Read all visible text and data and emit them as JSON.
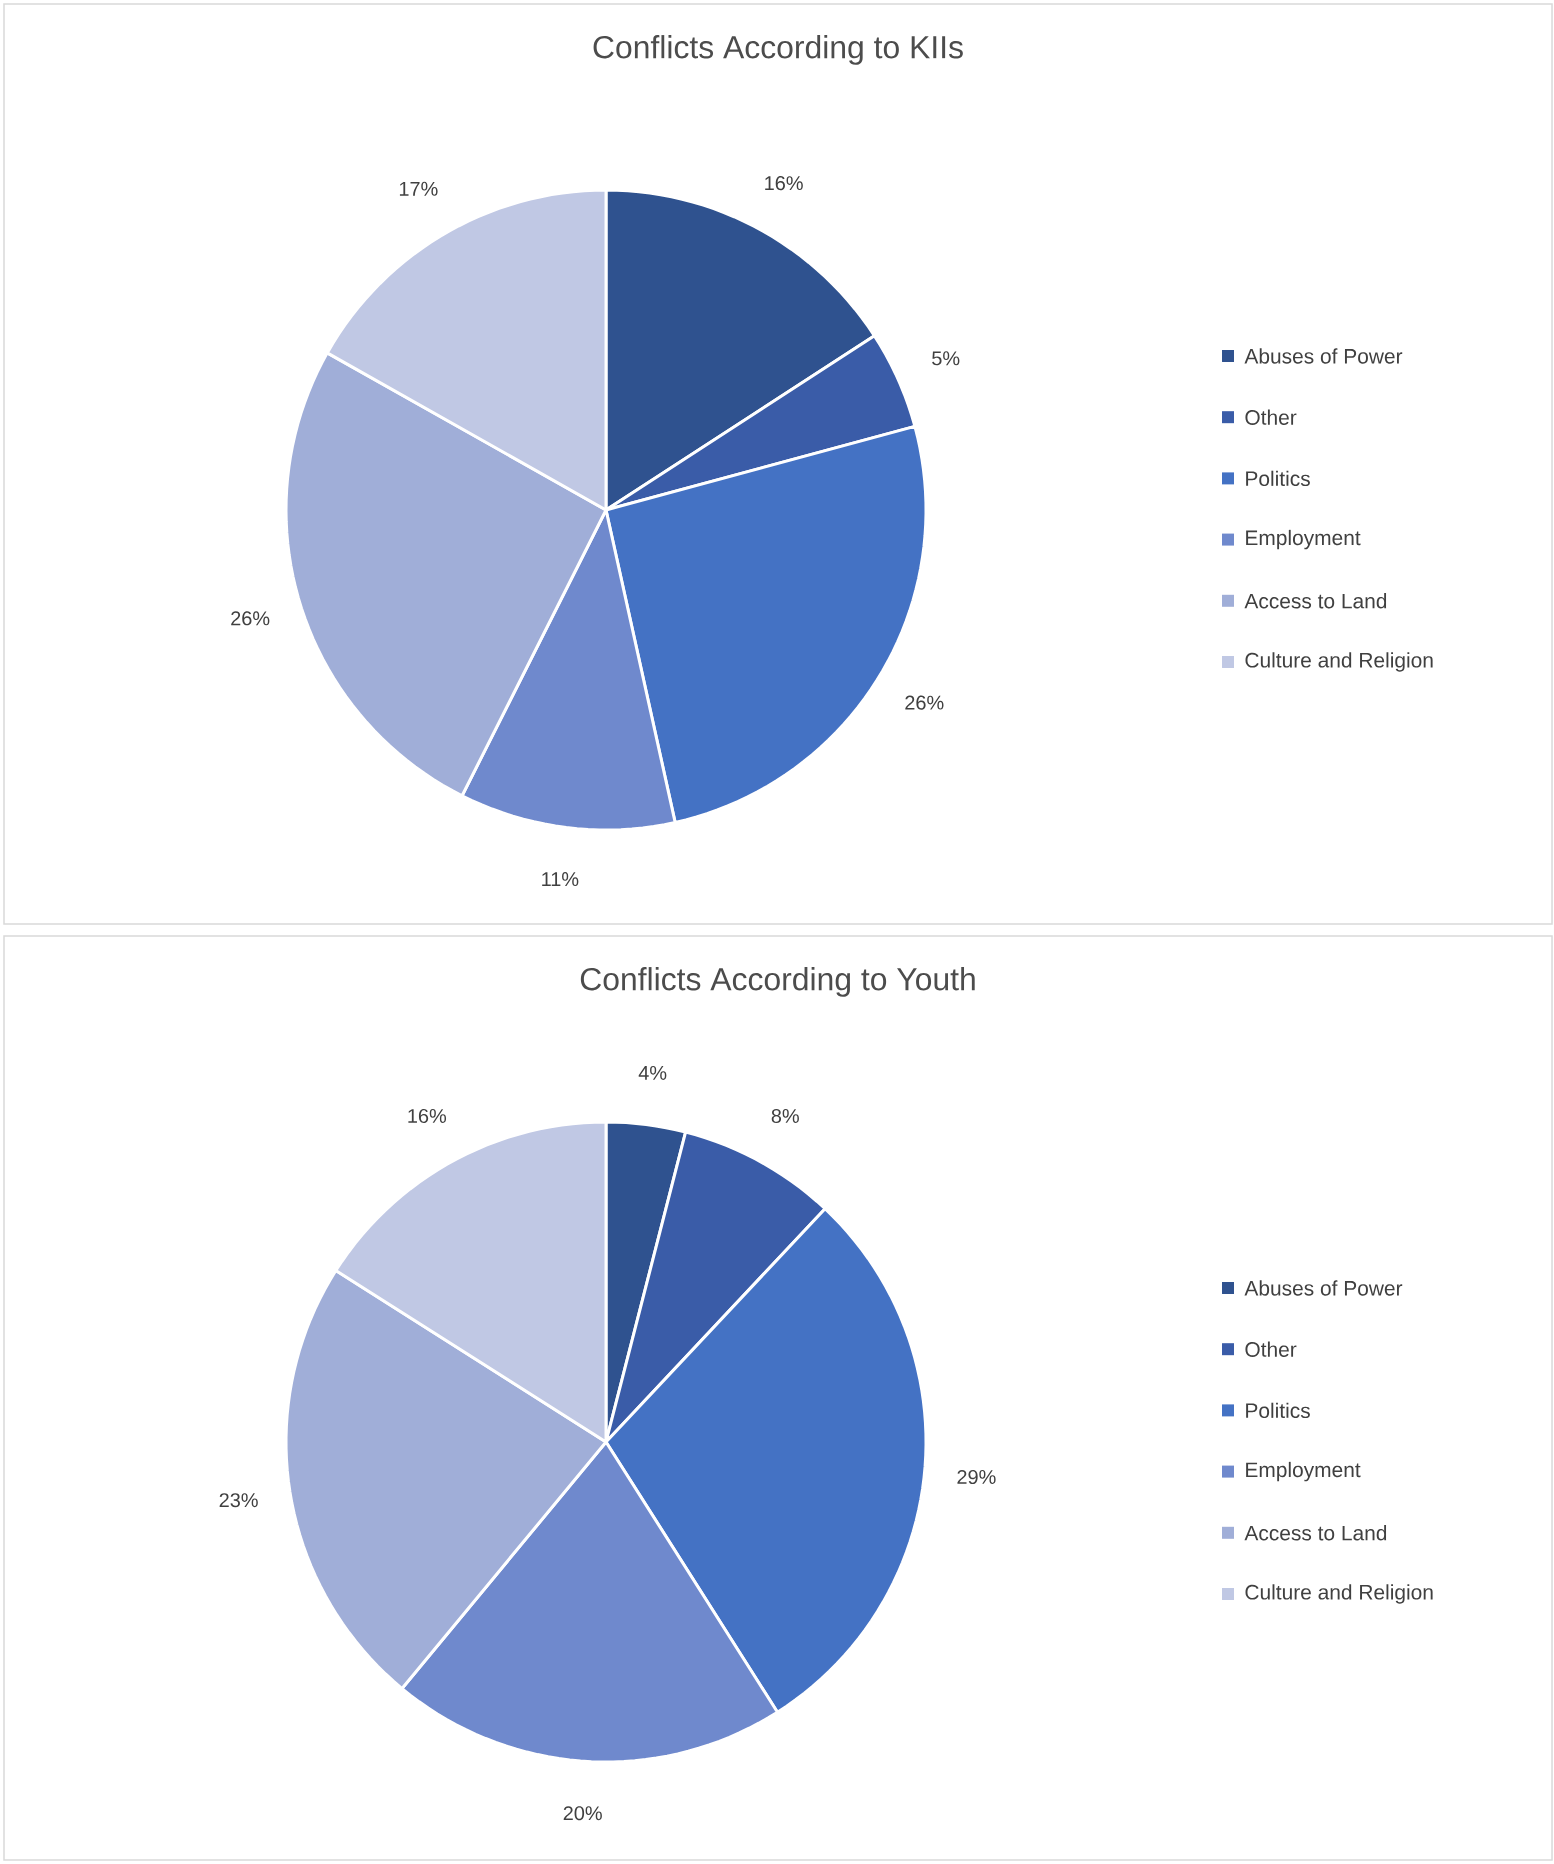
{
  "chart_data": [
    {
      "type": "pie",
      "title": "Conflicts According to KIIs",
      "categories": [
        "Abuses of Power",
        "Other",
        "Politics",
        "Employment",
        "Access to Land",
        "Culture and Religion"
      ],
      "values": [
        16,
        5,
        26,
        11,
        26,
        17
      ],
      "value_labels": [
        "16%",
        "5%",
        "26%",
        "11%",
        "26%",
        "17%"
      ],
      "colors": [
        "#2f528f",
        "#3a5ca8",
        "#4472c4",
        "#6f89cd",
        "#a0aed8",
        "#c0c8e4"
      ],
      "legend": "right"
    },
    {
      "type": "pie",
      "title": "Conflicts According to Youth",
      "categories": [
        "Abuses of Power",
        "Other",
        "Politics",
        "Employment",
        "Access to Land",
        "Culture and Religion"
      ],
      "values": [
        4,
        8,
        29,
        20,
        23,
        16
      ],
      "value_labels": [
        "4%",
        "8%",
        "29%",
        "20%",
        "23%",
        "16%"
      ],
      "colors": [
        "#2f528f",
        "#3a5ca8",
        "#4472c4",
        "#6f89cd",
        "#a0aed8",
        "#c0c8e4"
      ],
      "legend": "right"
    }
  ]
}
